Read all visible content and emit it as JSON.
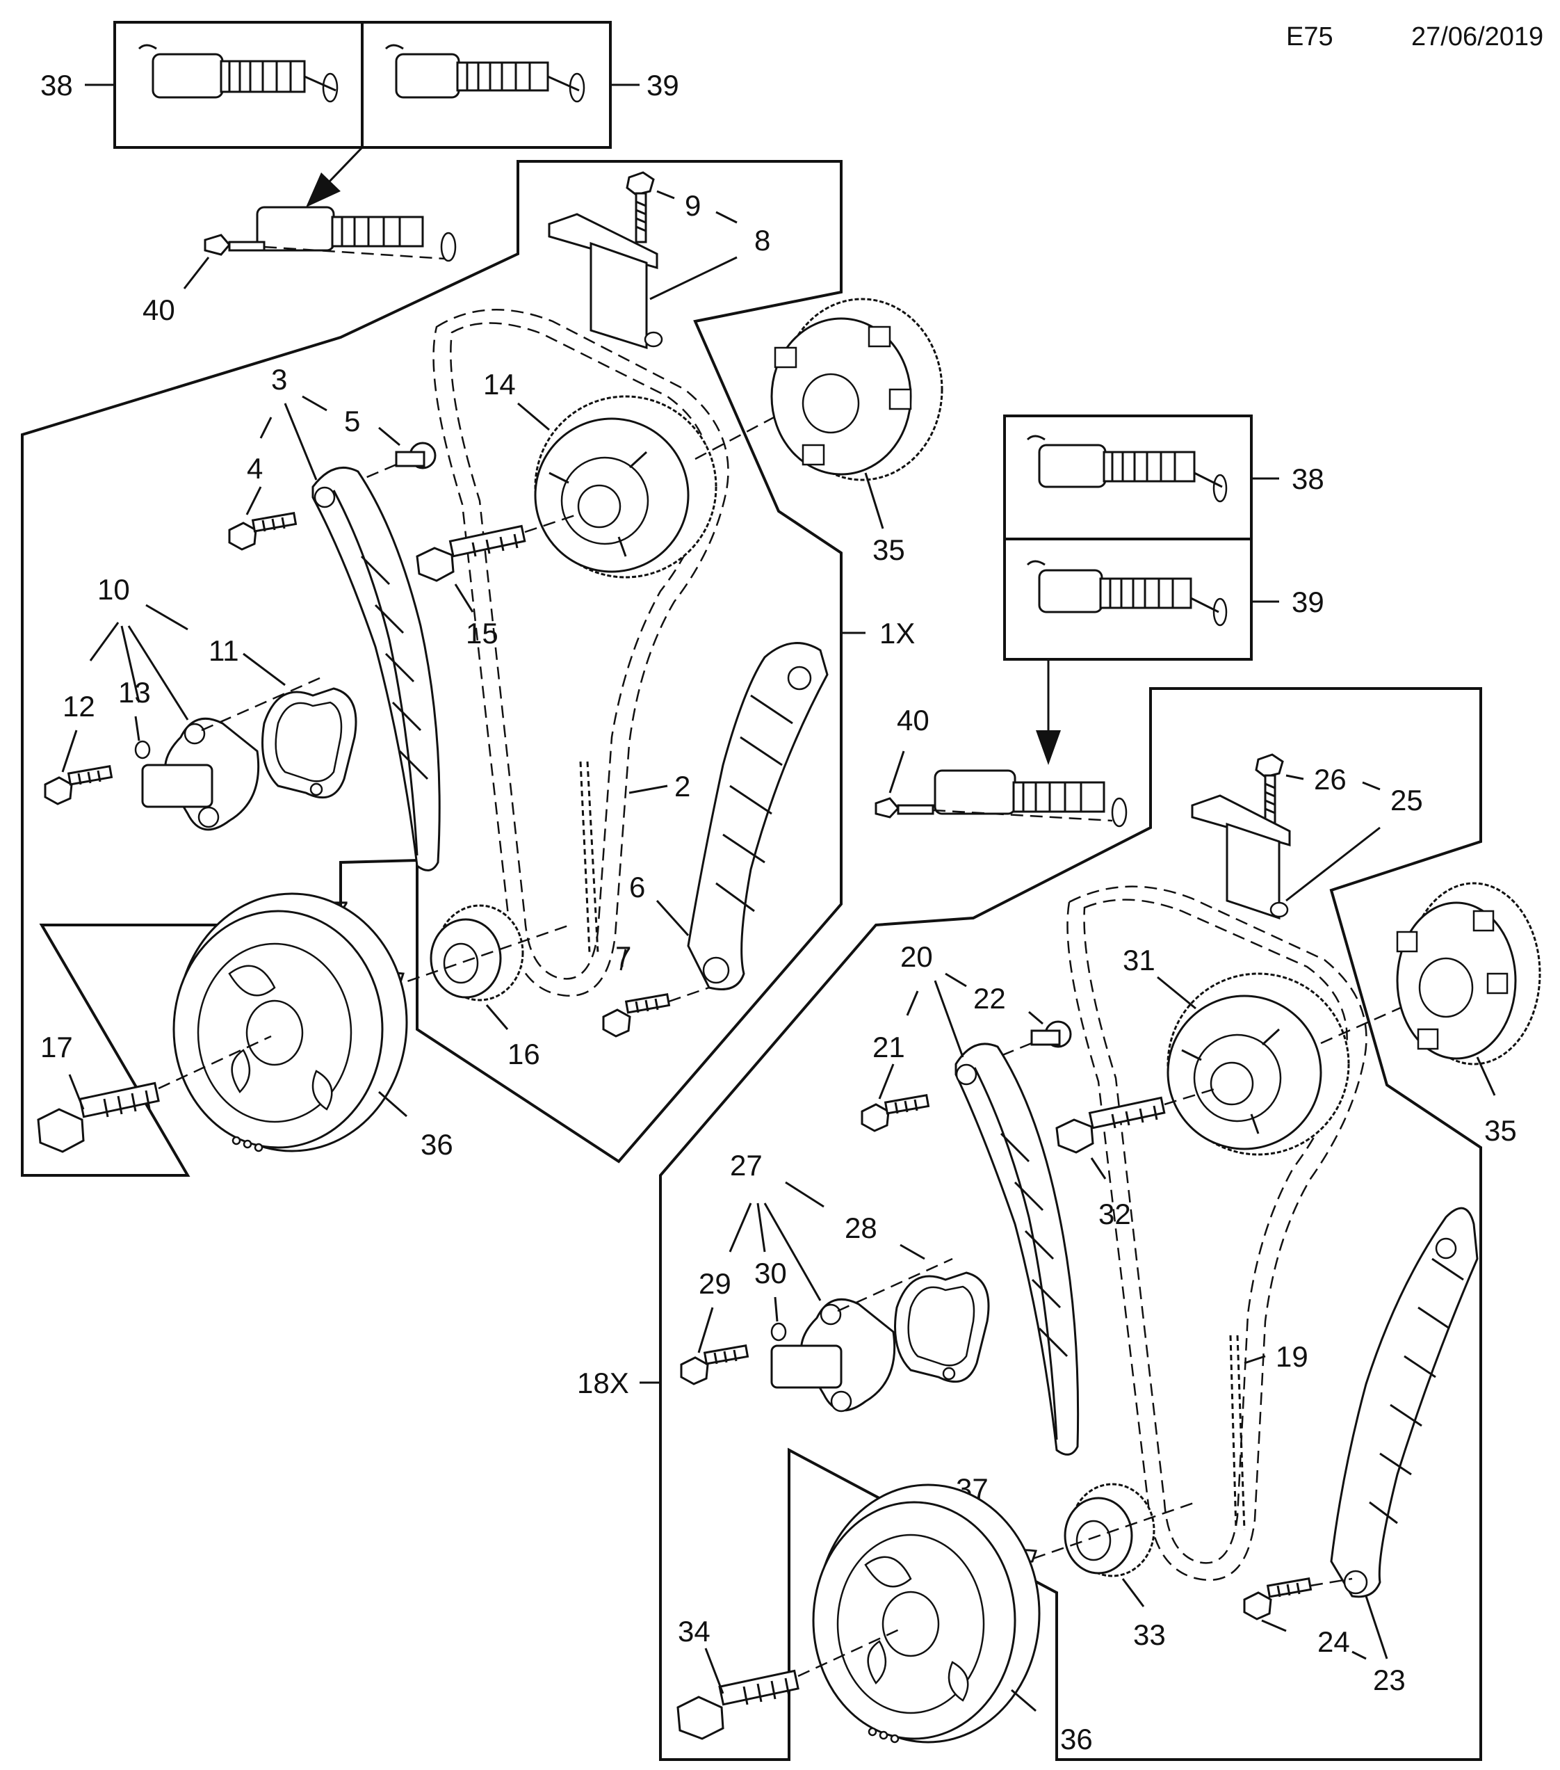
{
  "header": {
    "code": "E75",
    "date": "27/06/2019"
  },
  "callouts": {
    "c1x": "1X",
    "c2": "2",
    "c3": "3",
    "c4": "4",
    "c5": "5",
    "c6": "6",
    "c7": "7",
    "c8": "8",
    "c9": "9",
    "c10": "10",
    "c11": "11",
    "c12": "12",
    "c13": "13",
    "c14": "14",
    "c15": "15",
    "c16": "16",
    "c17": "17",
    "c18x": "18X",
    "c19": "19",
    "c20": "20",
    "c21": "21",
    "c22": "22",
    "c23": "23",
    "c24": "24",
    "c25": "25",
    "c26": "26",
    "c27": "27",
    "c28": "28",
    "c29": "29",
    "c30": "30",
    "c31": "31",
    "c32": "32",
    "c33": "33",
    "c34": "34",
    "c35": "35",
    "c36": "36",
    "c37": "37",
    "c38": "38",
    "c39": "39",
    "c40": "40"
  }
}
